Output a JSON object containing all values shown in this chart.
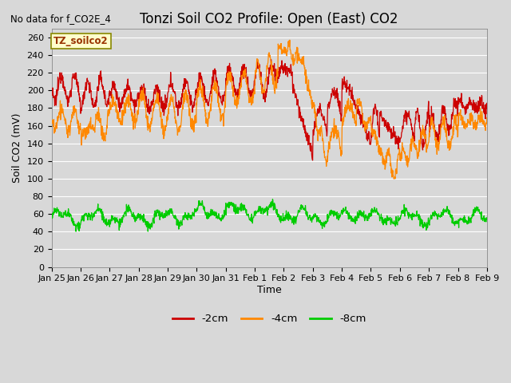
{
  "title": "Tonzi Soil CO2 Profile: Open (East) CO2",
  "subtitle": "No data for f_CO2E_4",
  "ylabel": "Soil CO2 (mV)",
  "xlabel": "Time",
  "ylim": [
    0,
    270
  ],
  "yticks": [
    0,
    20,
    40,
    60,
    80,
    100,
    120,
    140,
    160,
    180,
    200,
    220,
    240,
    260
  ],
  "legend_labels": [
    "-2cm",
    "-4cm",
    "-8cm"
  ],
  "line_colors": [
    "#cc0000",
    "#ff8800",
    "#00cc00"
  ],
  "inset_label": "TZ_soilco2",
  "inset_bg": "#ffffcc",
  "inset_border": "#888800",
  "plot_bg": "#d8d8d8",
  "fig_bg": "#d8d8d8",
  "grid_color": "#ffffff",
  "title_fontsize": 12,
  "axis_fontsize": 9,
  "tick_fontsize": 8,
  "date_labels": [
    "Jan 25",
    "Jan 26",
    "Jan 27",
    "Jan 28",
    "Jan 29",
    "Jan 30",
    "Jan 31",
    "Feb 1",
    "Feb 2",
    "Feb 3",
    "Feb 4",
    "Feb 5",
    "Feb 6",
    "Feb 7",
    "Feb 8",
    "Feb 9"
  ],
  "date_ticks": [
    0,
    1,
    2,
    3,
    4,
    5,
    6,
    7,
    8,
    9,
    10,
    11,
    12,
    13,
    14,
    15
  ]
}
